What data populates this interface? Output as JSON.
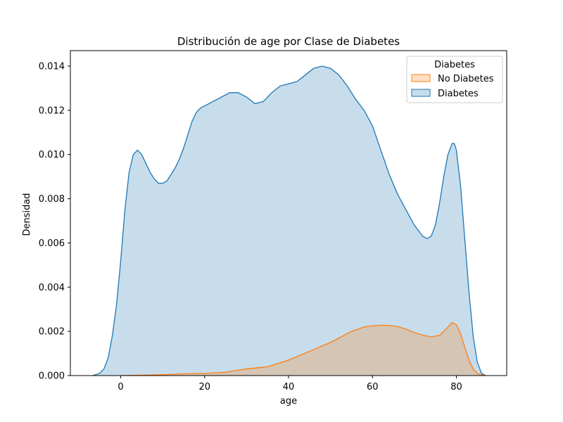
{
  "chart_data": {
    "type": "area",
    "title": "Distribución de age por Clase de Diabetes",
    "xlabel": "age",
    "ylabel": "Densidad",
    "xlim": [
      -12,
      92
    ],
    "ylim": [
      0,
      0.0147
    ],
    "xticks": [
      0,
      20,
      40,
      60,
      80
    ],
    "yticks": [
      0.0,
      0.002,
      0.004,
      0.006,
      0.008,
      0.01,
      0.012,
      0.014
    ],
    "ytick_labels": [
      "0.000",
      "0.002",
      "0.004",
      "0.006",
      "0.008",
      "0.010",
      "0.012",
      "0.014"
    ],
    "grid": false,
    "legend": {
      "title": "Diabetes",
      "placement": "top-right",
      "entries": [
        "No Diabetes",
        "Diabetes"
      ]
    },
    "series": [
      {
        "name": "Diabetes",
        "color": "#1f77b4",
        "x": [
          -6.7,
          -5,
          -4,
          -3,
          -2,
          -1,
          0,
          1,
          2,
          3,
          4,
          5,
          6,
          7,
          8,
          9,
          10,
          11,
          12,
          13,
          14,
          15,
          16,
          17,
          18,
          19,
          20,
          22,
          24,
          26,
          28,
          30,
          32,
          34,
          36,
          38,
          40,
          42,
          44,
          46,
          48,
          50,
          52,
          54,
          56,
          58,
          60,
          62,
          64,
          66,
          68,
          70,
          72,
          73,
          74,
          75,
          76,
          77,
          78,
          79,
          79.5,
          80,
          81,
          82,
          83,
          84,
          85,
          86,
          87
        ],
        "y": [
          0.0,
          0.0001,
          0.0003,
          0.0008,
          0.0018,
          0.0032,
          0.0052,
          0.0075,
          0.0092,
          0.01,
          0.0102,
          0.01,
          0.0096,
          0.0092,
          0.0089,
          0.0087,
          0.0087,
          0.0088,
          0.0091,
          0.0094,
          0.0098,
          0.0103,
          0.0109,
          0.0115,
          0.0119,
          0.0121,
          0.0122,
          0.0124,
          0.0126,
          0.0128,
          0.0128,
          0.0126,
          0.0123,
          0.0124,
          0.0128,
          0.0131,
          0.0132,
          0.0133,
          0.0136,
          0.0139,
          0.014,
          0.0139,
          0.0136,
          0.0131,
          0.0125,
          0.012,
          0.0113,
          0.0102,
          0.0091,
          0.0082,
          0.0075,
          0.0068,
          0.0063,
          0.0062,
          0.0063,
          0.0068,
          0.0078,
          0.009,
          0.01,
          0.0105,
          0.0105,
          0.0102,
          0.0086,
          0.0062,
          0.0038,
          0.0018,
          0.0006,
          0.0001,
          0.0
        ]
      },
      {
        "name": "No Diabetes",
        "color": "#ff7f0e",
        "x": [
          0,
          5,
          10,
          15,
          20,
          25,
          28,
          30,
          35,
          40,
          45,
          50,
          55,
          58,
          60,
          62,
          64,
          66,
          68,
          70,
          72,
          74,
          76,
          77,
          78,
          79,
          80,
          81,
          82,
          83,
          84,
          85,
          86,
          87
        ],
        "y": [
          0.0,
          2e-05,
          4e-05,
          8e-05,
          0.0001,
          0.00015,
          0.00025,
          0.0003,
          0.0004,
          0.0007,
          0.0011,
          0.0015,
          0.002,
          0.0022,
          0.00225,
          0.00228,
          0.00227,
          0.00222,
          0.0021,
          0.00195,
          0.00183,
          0.00175,
          0.00182,
          0.002,
          0.0022,
          0.0024,
          0.0023,
          0.0019,
          0.0013,
          0.0007,
          0.0003,
          0.0001,
          3e-05,
          0.0
        ]
      }
    ]
  }
}
